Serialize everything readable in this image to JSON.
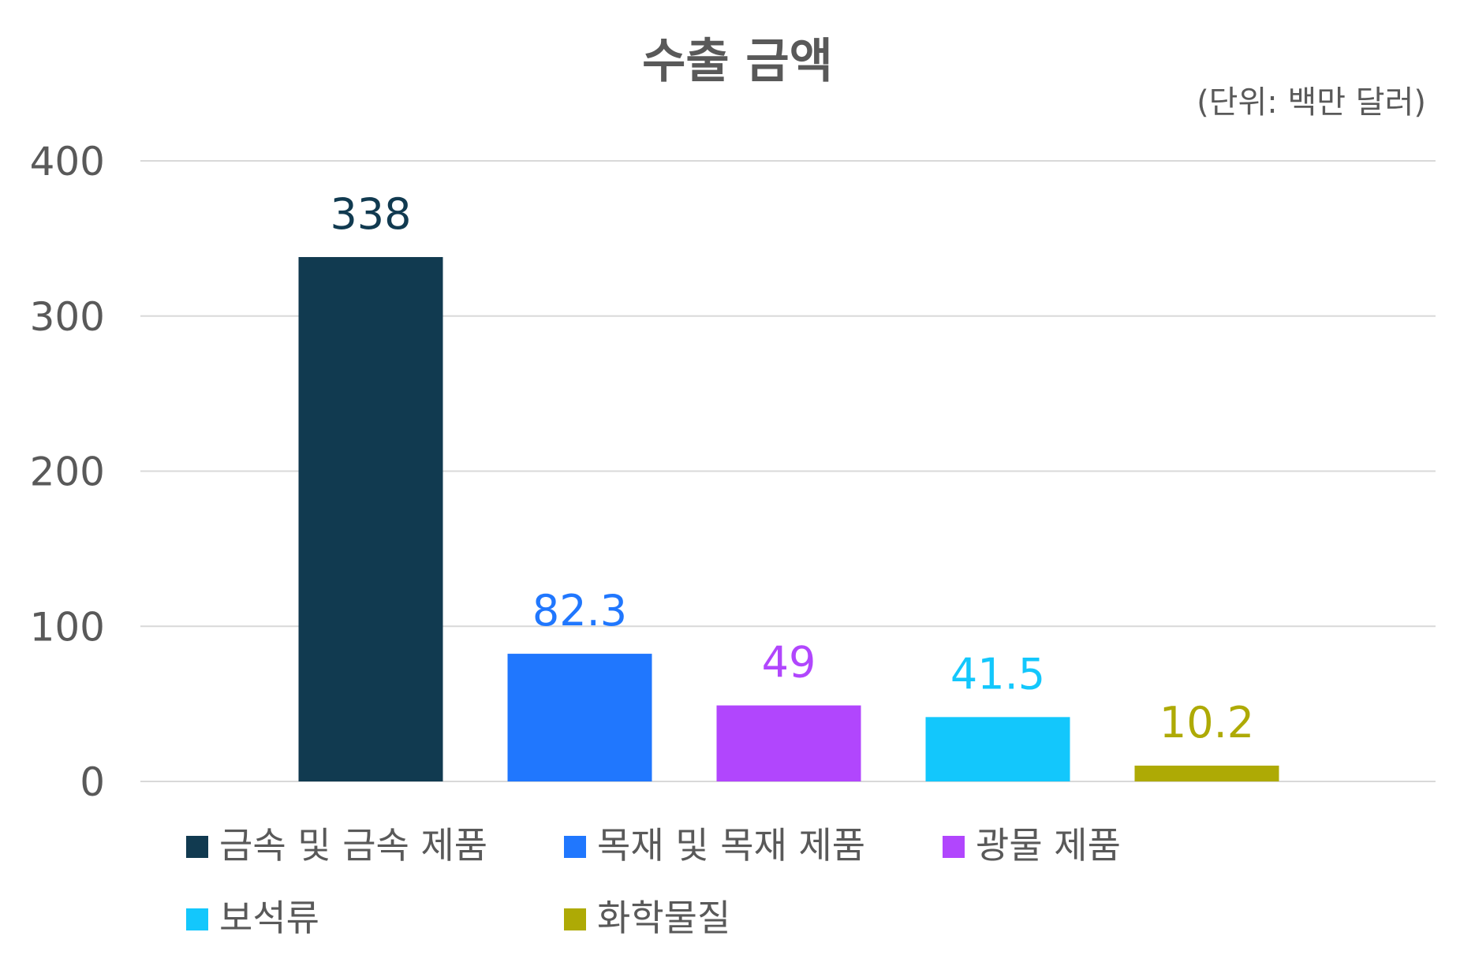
{
  "chart_data": {
    "type": "bar",
    "title": "수출 금액",
    "unit_note": "(단위: 백만 달러)",
    "xlabel": "",
    "ylabel": "",
    "ylim": [
      0,
      400
    ],
    "yticks": [
      0,
      100,
      200,
      300,
      400
    ],
    "grid": true,
    "legend_position": "bottom",
    "categories": [
      "금속 및 금속 제품",
      "목재 및 목재 제품",
      "광물 제품",
      "보석류",
      "화학물질"
    ],
    "values": [
      338,
      82.3,
      49,
      41.5,
      10.2
    ],
    "data_labels": [
      "338",
      "82.3",
      "49",
      "41.5",
      "10.2"
    ],
    "colors": [
      "#113a50",
      "#2077fe",
      "#b146fd",
      "#13c7fc",
      "#aeaa05"
    ],
    "label_colors": [
      "#113a50",
      "#2077fe",
      "#b146fd",
      "#13c7fc",
      "#aeaa05"
    ]
  }
}
